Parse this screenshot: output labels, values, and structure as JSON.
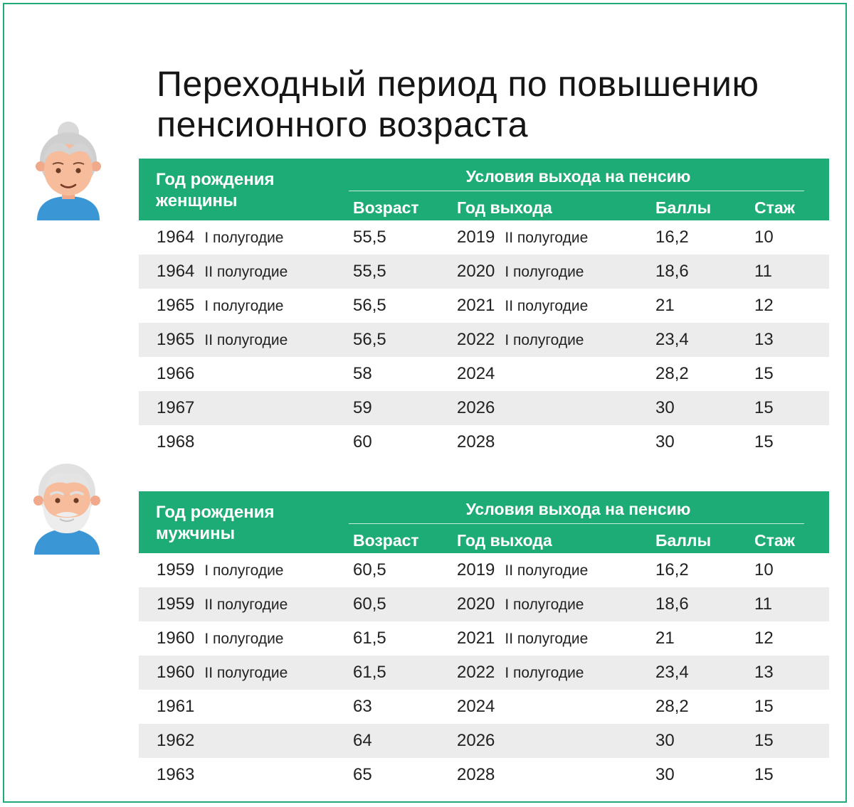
{
  "title": {
    "line1": "Переходный период по повышению",
    "line2": "пенсионного возраста"
  },
  "colors": {
    "accent": "#1dab76",
    "row_shade": "#ececec"
  },
  "avatars": {
    "women": "grandmother-icon",
    "men": "grandfather-icon"
  },
  "women_table": {
    "header": {
      "birth_line1": "Год рождения",
      "birth_line2": "женщины",
      "conditions": "Условия выхода на пенсию",
      "age": "Возраст",
      "exit_year": "Год выхода",
      "points": "Баллы",
      "tenure": "Стаж"
    },
    "rows": [
      {
        "birth": "1964",
        "birth_half": "I полугодие",
        "age": "55,5",
        "exit": "2019",
        "exit_half": "II полугодие",
        "points": "16,2",
        "tenure": "10"
      },
      {
        "birth": "1964",
        "birth_half": "II полугодие",
        "age": "55,5",
        "exit": "2020",
        "exit_half": "I полугодие",
        "points": "18,6",
        "tenure": "11"
      },
      {
        "birth": "1965",
        "birth_half": "I полугодие",
        "age": "56,5",
        "exit": "2021",
        "exit_half": "II полугодие",
        "points": "21",
        "tenure": "12"
      },
      {
        "birth": "1965",
        "birth_half": "II полугодие",
        "age": "56,5",
        "exit": "2022",
        "exit_half": "I полугодие",
        "points": "23,4",
        "tenure": "13"
      },
      {
        "birth": "1966",
        "birth_half": "",
        "age": "58",
        "exit": "2024",
        "exit_half": "",
        "points": "28,2",
        "tenure": "15"
      },
      {
        "birth": "1967",
        "birth_half": "",
        "age": "59",
        "exit": "2026",
        "exit_half": "",
        "points": "30",
        "tenure": "15"
      },
      {
        "birth": "1968",
        "birth_half": "",
        "age": "60",
        "exit": "2028",
        "exit_half": "",
        "points": "30",
        "tenure": "15"
      }
    ]
  },
  "men_table": {
    "header": {
      "birth_line1": "Год рождения",
      "birth_line2": "мужчины",
      "conditions": "Условия выхода на пенсию",
      "age": "Возраст",
      "exit_year": "Год выхода",
      "points": "Баллы",
      "tenure": "Стаж"
    },
    "rows": [
      {
        "birth": "1959",
        "birth_half": "I полугодие",
        "age": "60,5",
        "exit": "2019",
        "exit_half": "II полугодие",
        "points": "16,2",
        "tenure": "10"
      },
      {
        "birth": "1959",
        "birth_half": "II полугодие",
        "age": "60,5",
        "exit": "2020",
        "exit_half": "I полугодие",
        "points": "18,6",
        "tenure": "11"
      },
      {
        "birth": "1960",
        "birth_half": "I полугодие",
        "age": "61,5",
        "exit": "2021",
        "exit_half": "II полугодие",
        "points": "21",
        "tenure": "12"
      },
      {
        "birth": "1960",
        "birth_half": "II полугодие",
        "age": "61,5",
        "exit": "2022",
        "exit_half": "I полугодие",
        "points": "23,4",
        "tenure": "13"
      },
      {
        "birth": "1961",
        "birth_half": "",
        "age": "63",
        "exit": "2024",
        "exit_half": "",
        "points": "28,2",
        "tenure": "15"
      },
      {
        "birth": "1962",
        "birth_half": "",
        "age": "64",
        "exit": "2026",
        "exit_half": "",
        "points": "30",
        "tenure": "15"
      },
      {
        "birth": "1963",
        "birth_half": "",
        "age": "65",
        "exit": "2028",
        "exit_half": "",
        "points": "30",
        "tenure": "15"
      }
    ]
  }
}
